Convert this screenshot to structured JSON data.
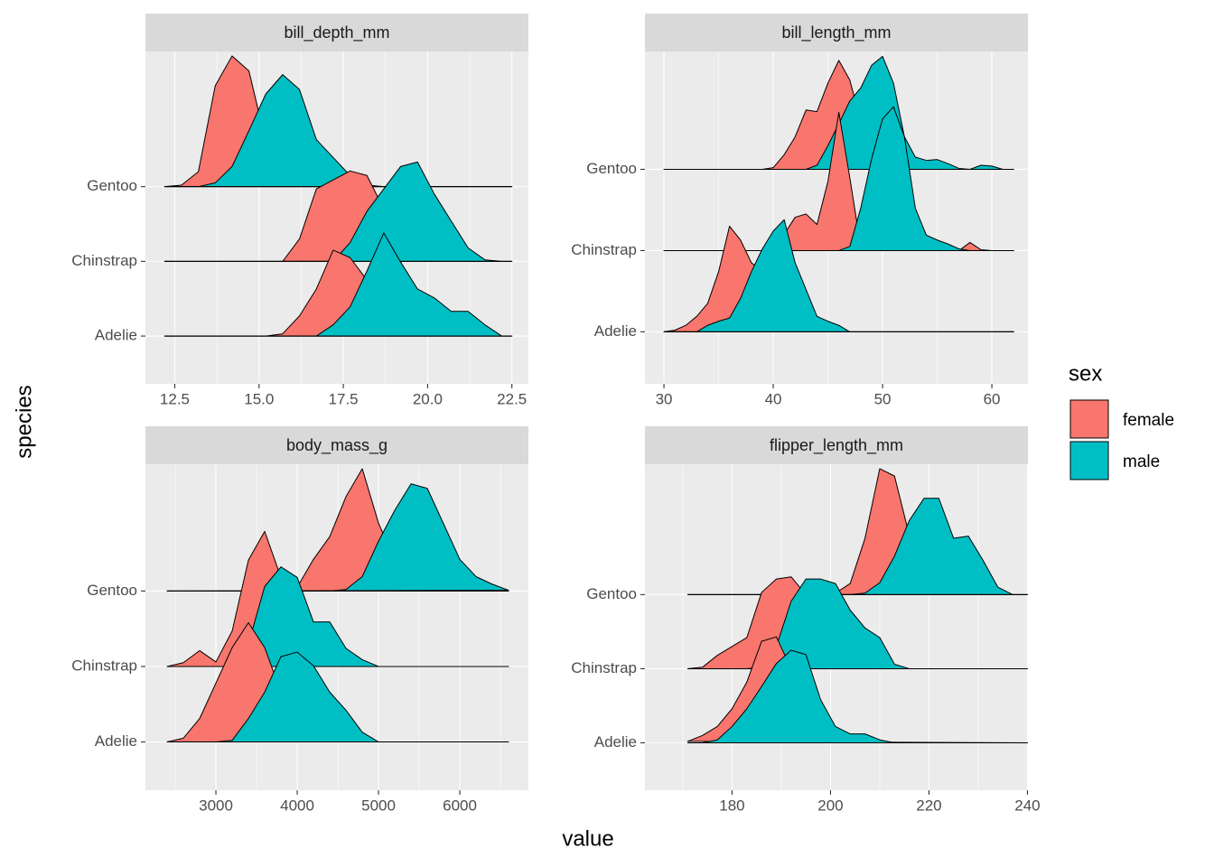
{
  "x_label": "value",
  "y_label": "species",
  "legend_title": "sex",
  "chart_data": [
    {
      "type": "ridgeline",
      "title": "bill_depth_mm",
      "categories": [
        "Adelie",
        "Chinstrap",
        "Gentoo"
      ],
      "x": [
        12.2,
        12.7,
        13.2,
        13.7,
        14.2,
        14.7,
        15.2,
        15.7,
        16.2,
        16.7,
        17.2,
        17.7,
        18.2,
        18.7,
        19.2,
        19.7,
        20.2,
        20.7,
        21.2,
        21.7,
        22.2,
        22.5
      ],
      "series": [
        {
          "name": "female",
          "color": "#F8766D",
          "values": [
            [
              0,
              0,
              0,
              0,
              0,
              0,
              0,
              0.03,
              0.27,
              0.63,
              1.15,
              1.05,
              0.75,
              0.4,
              0.15,
              0.05,
              0,
              0,
              0,
              0,
              0,
              0
            ],
            [
              0,
              0,
              0,
              0,
              0,
              0,
              0,
              0,
              0.3,
              0.97,
              1.09,
              1.21,
              1.15,
              0.7,
              0.3,
              0.1,
              0.02,
              0,
              0,
              0,
              0,
              0
            ],
            [
              0,
              0.02,
              0.2,
              1.35,
              1.75,
              1.55,
              0.6,
              0.2,
              0.05,
              0,
              0,
              0,
              0,
              0,
              0,
              0,
              0,
              0,
              0,
              0,
              0,
              0
            ]
          ]
        },
        {
          "name": "male",
          "color": "#00BFC4",
          "values": [
            [
              0,
              0,
              0,
              0,
              0,
              0,
              0,
              0,
              0,
              0,
              0.15,
              0.39,
              0.87,
              1.38,
              0.99,
              0.63,
              0.51,
              0.33,
              0.33,
              0.15,
              0,
              0
            ],
            [
              0,
              0,
              0,
              0,
              0,
              0,
              0,
              0,
              0,
              0,
              0,
              0.25,
              0.67,
              0.97,
              1.27,
              1.33,
              0.9,
              0.54,
              0.18,
              0.02,
              0,
              0
            ],
            [
              0,
              0,
              0,
              0.05,
              0.27,
              0.75,
              1.24,
              1.5,
              1.3,
              0.63,
              0.39,
              0.15,
              0.02,
              0,
              0,
              0,
              0,
              0,
              0,
              0,
              0,
              0
            ]
          ]
        }
      ],
      "xlim": [
        11.63,
        22.99
      ],
      "xticks": [
        12.5,
        {
          "value": 15,
          "label": "15.0"
        },
        17.5,
        {
          "value": 20,
          "label": "20.0"
        },
        22.5
      ],
      "grid": true
    },
    {
      "type": "ridgeline",
      "title": "bill_length_mm",
      "categories": [
        "Adelie",
        "Chinstrap",
        "Gentoo"
      ],
      "x": [
        30,
        31,
        32,
        33,
        34,
        35,
        36,
        37,
        38,
        39,
        40,
        41,
        42,
        43,
        44,
        45,
        46,
        47,
        48,
        49,
        50,
        51,
        52,
        53,
        54,
        55,
        56,
        57,
        58,
        59,
        60,
        61,
        62
      ],
      "series": [
        {
          "name": "female",
          "color": "#F8766D",
          "values": [
            [
              0,
              0.02,
              0.08,
              0.19,
              0.35,
              0.74,
              1.3,
              1.13,
              0.85,
              0.74,
              0.55,
              0.4,
              0.3,
              0.1,
              0.03,
              0.01,
              0,
              0,
              0,
              0,
              0,
              0,
              0,
              0,
              0,
              0,
              0,
              0,
              0,
              0,
              0,
              0,
              0
            ],
            [
              0,
              0,
              0,
              0,
              0,
              0,
              0,
              0,
              0,
              0,
              0.05,
              0.2,
              0.41,
              0.45,
              0.32,
              0.85,
              1.7,
              0.9,
              0.05,
              0,
              0,
              0,
              0,
              0,
              0,
              0,
              0,
              0,
              0.1,
              0.01,
              0,
              0,
              0
            ],
            [
              0,
              0,
              0,
              0,
              0,
              0,
              0,
              0,
              0,
              0,
              0.02,
              0.18,
              0.4,
              0.73,
              0.71,
              1.06,
              1.34,
              1.1,
              0.6,
              0.25,
              0.08,
              0.02,
              0,
              0,
              0,
              0,
              0,
              0,
              0,
              0,
              0,
              0,
              0
            ]
          ]
        },
        {
          "name": "male",
          "color": "#00BFC4",
          "values": [
            [
              0,
              0,
              0,
              0,
              0.08,
              0.13,
              0.17,
              0.41,
              0.74,
              1.02,
              1.24,
              1.38,
              0.85,
              0.52,
              0.19,
              0.13,
              0.08,
              0,
              0,
              0,
              0,
              0,
              0,
              0,
              0,
              0,
              0,
              0,
              0,
              0,
              0,
              0,
              0
            ],
            [
              0,
              0,
              0,
              0,
              0,
              0,
              0,
              0,
              0,
              0,
              0,
              0,
              0,
              0,
              0,
              0,
              0,
              0.05,
              0.52,
              1.13,
              1.62,
              1.77,
              1.4,
              0.52,
              0.19,
              0.13,
              0.08,
              0.02,
              0,
              0,
              0,
              0,
              0
            ],
            [
              0,
              0,
              0,
              0,
              0,
              0,
              0,
              0,
              0,
              0,
              0,
              0,
              0,
              0,
              0.05,
              0.29,
              0.56,
              0.84,
              1.0,
              1.28,
              1.39,
              1.06,
              0.4,
              0.15,
              0.11,
              0.12,
              0.07,
              0.01,
              0,
              0.05,
              0.04,
              0,
              0
            ]
          ]
        }
      ],
      "xlim": [
        28.26,
        63.3
      ],
      "xticks": [
        30,
        40,
        50,
        60
      ],
      "grid": true
    },
    {
      "type": "ridgeline",
      "title": "body_mass_g",
      "categories": [
        "Adelie",
        "Chinstrap",
        "Gentoo"
      ],
      "x": [
        2400,
        2600,
        2800,
        3000,
        3200,
        3400,
        3600,
        3800,
        4000,
        4200,
        4400,
        4600,
        4800,
        5000,
        5200,
        5400,
        5600,
        5800,
        6000,
        6200,
        6400,
        6600
      ],
      "series": [
        {
          "name": "female",
          "color": "#F8766D",
          "values": [
            [
              0,
              0.05,
              0.31,
              0.78,
              1.25,
              1.58,
              1.25,
              0.66,
              0.3,
              0.1,
              0.02,
              0,
              0,
              0,
              0,
              0,
              0,
              0,
              0,
              0,
              0,
              0
            ],
            [
              0,
              0.05,
              0.21,
              0.06,
              0.47,
              1.41,
              1.79,
              1.18,
              0.3,
              0.05,
              0,
              0,
              0,
              0,
              0,
              0,
              0,
              0,
              0,
              0,
              0,
              0
            ],
            [
              0,
              0,
              0,
              0,
              0,
              0,
              0,
              0,
              0.05,
              0.42,
              0.72,
              1.25,
              1.62,
              0.9,
              0.4,
              0.15,
              0.05,
              0,
              0,
              0,
              0,
              0
            ]
          ]
        },
        {
          "name": "male",
          "color": "#00BFC4",
          "values": [
            [
              0,
              0,
              0,
              0,
              0.02,
              0.31,
              0.66,
              1.13,
              1.19,
              1.01,
              0.66,
              0.42,
              0.13,
              0,
              0,
              0,
              0,
              0,
              0,
              0,
              0,
              0
            ],
            [
              0,
              0,
              0,
              0,
              0,
              0.3,
              1.06,
              1.32,
              1.18,
              0.59,
              0.59,
              0.24,
              0.09,
              0,
              0,
              0,
              0,
              0,
              0,
              0,
              0,
              0
            ],
            [
              0,
              0,
              0,
              0,
              0,
              0,
              0,
              0,
              0,
              0,
              0,
              0.02,
              0.19,
              0.66,
              1.07,
              1.42,
              1.36,
              0.89,
              0.42,
              0.19,
              0.09,
              0.01
            ]
          ]
        }
      ],
      "xlim": [
        2133,
        6844
      ],
      "xticks": [
        3000,
        4000,
        5000,
        6000
      ],
      "grid": true
    },
    {
      "type": "ridgeline",
      "title": "flipper_length_mm",
      "categories": [
        "Adelie",
        "Chinstrap",
        "Gentoo"
      ],
      "x": [
        171,
        174,
        177,
        180,
        183,
        186,
        189,
        192,
        195,
        198,
        201,
        204,
        207,
        210,
        213,
        216,
        219,
        222,
        225,
        228,
        231,
        234,
        237,
        240
      ],
      "series": [
        {
          "name": "female",
          "color": "#F8766D",
          "values": [
            [
              0.02,
              0.1,
              0.22,
              0.46,
              0.82,
              1.37,
              1.43,
              1.0,
              0.6,
              0.3,
              0.1,
              0.02,
              0,
              0,
              0,
              0,
              0,
              0,
              0,
              0,
              0,
              0,
              0,
              0
            ],
            [
              0,
              0.02,
              0.18,
              0.3,
              0.42,
              1.03,
              1.21,
              1.24,
              1.0,
              0.5,
              0.2,
              0.05,
              0,
              0,
              0,
              0,
              0,
              0,
              0,
              0,
              0,
              0,
              0,
              0
            ],
            [
              0,
              0,
              0,
              0,
              0,
              0,
              0,
              0,
              0,
              0,
              0.02,
              0.15,
              0.76,
              1.7,
              1.6,
              0.8,
              0.3,
              0.1,
              0.02,
              0,
              0,
              0,
              0,
              0
            ]
          ]
        },
        {
          "name": "male",
          "color": "#00BFC4",
          "values": [
            [
              0,
              0,
              0.04,
              0.22,
              0.46,
              0.76,
              1.07,
              1.25,
              1.19,
              0.58,
              0.22,
              0.12,
              0.12,
              0.04,
              0,
              0,
              0,
              0,
              0,
              0,
              0,
              0,
              0,
              0
            ],
            [
              0,
              0,
              0,
              0,
              0,
              0.02,
              0.3,
              0.91,
              1.21,
              1.21,
              1.15,
              0.79,
              0.55,
              0.42,
              0.06,
              0,
              0,
              0,
              0,
              0,
              0,
              0,
              0,
              0
            ],
            [
              0,
              0,
              0,
              0,
              0,
              0,
              0,
              0,
              0,
              0,
              0,
              0,
              0.02,
              0.16,
              0.52,
              1.0,
              1.3,
              1.3,
              0.76,
              0.79,
              0.46,
              0.1,
              0,
              0
            ]
          ]
        }
      ],
      "xlim": [
        162.3,
        240.1
      ],
      "xticks": [
        180,
        200,
        220,
        240
      ],
      "grid": true
    }
  ]
}
